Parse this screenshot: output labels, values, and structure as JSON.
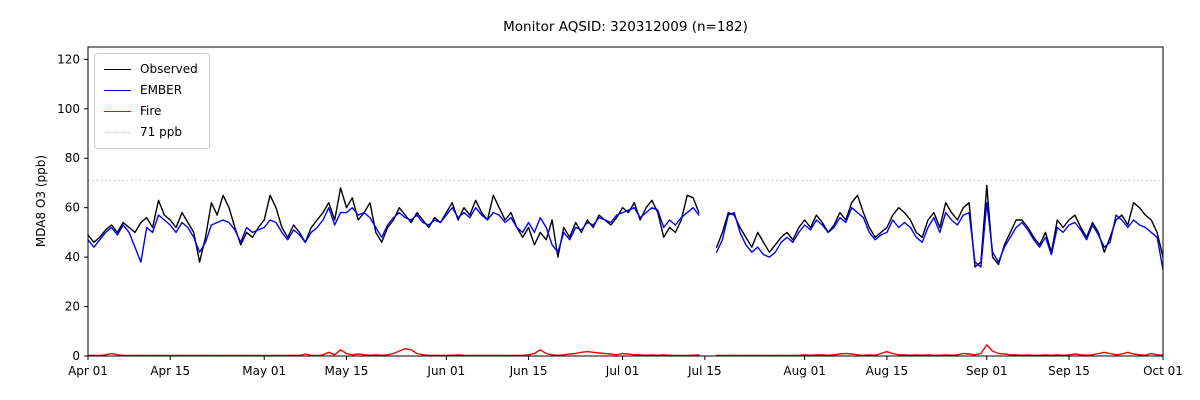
{
  "chart_data": {
    "type": "line",
    "title": "Monitor AQSID: 320312009 (n=182)",
    "n_points": 182,
    "xlabel": "",
    "ylabel": "MDA8 O3 (ppb)",
    "ylim": [
      0,
      125
    ],
    "yticks": [
      0,
      20,
      40,
      60,
      80,
      100,
      120
    ],
    "x_unit": "days since Apr 01",
    "x_range_days": [
      0,
      183
    ],
    "xticks": [
      {
        "label": "Apr 01",
        "day": 0
      },
      {
        "label": "Apr 15",
        "day": 14
      },
      {
        "label": "May 01",
        "day": 30
      },
      {
        "label": "May 15",
        "day": 44
      },
      {
        "label": "Jun 01",
        "day": 61
      },
      {
        "label": "Jun 15",
        "day": 75
      },
      {
        "label": "Jul 01",
        "day": 91
      },
      {
        "label": "Jul 15",
        "day": 105
      },
      {
        "label": "Aug 01",
        "day": 122
      },
      {
        "label": "Aug 15",
        "day": 136
      },
      {
        "label": "Sep 01",
        "day": 153
      },
      {
        "label": "Sep 15",
        "day": 167
      },
      {
        "label": "Oct 01",
        "day": 183
      }
    ],
    "grid": false,
    "legend_position": "upper left",
    "threshold": {
      "value": 71,
      "label": "71 ppb",
      "color": "#c8c8c8",
      "style": "dotted"
    },
    "series": [
      {
        "name": "Observed",
        "color": "#000000",
        "values": [
          49,
          46,
          48,
          51,
          53,
          50,
          54,
          52,
          50,
          54,
          56,
          52,
          63,
          57,
          55,
          52,
          58,
          54,
          50,
          38,
          48,
          62,
          57,
          65,
          60,
          52,
          45,
          50,
          48,
          52,
          55,
          65,
          60,
          52,
          48,
          53,
          50,
          46,
          52,
          55,
          58,
          62,
          55,
          68,
          60,
          64,
          55,
          58,
          62,
          50,
          46,
          52,
          55,
          60,
          57,
          54,
          58,
          55,
          52,
          56,
          54,
          58,
          62,
          55,
          60,
          57,
          63,
          58,
          55,
          65,
          60,
          55,
          58,
          52,
          48,
          52,
          45,
          50,
          47,
          55,
          40,
          52,
          48,
          54,
          50,
          55,
          52,
          57,
          55,
          53,
          56,
          60,
          58,
          62,
          55,
          60,
          63,
          58,
          48,
          52,
          50,
          55,
          65,
          64,
          58,
          null,
          null,
          44,
          50,
          58,
          57,
          52,
          48,
          44,
          50,
          46,
          42,
          45,
          48,
          50,
          47,
          52,
          55,
          52,
          57,
          54,
          50,
          53,
          58,
          55,
          62,
          65,
          58,
          52,
          48,
          50,
          52,
          57,
          60,
          58,
          55,
          50,
          48,
          55,
          58,
          52,
          62,
          58,
          55,
          60,
          62,
          36,
          38,
          69,
          40,
          37,
          45,
          50,
          55,
          55,
          52,
          48,
          45,
          50,
          42,
          55,
          52,
          55,
          57,
          52,
          48,
          54,
          50,
          42,
          48,
          55,
          57,
          53,
          62,
          60,
          57,
          55,
          50,
          40
        ]
      },
      {
        "name": "EMBER",
        "color": "#0000ff",
        "values": [
          47,
          44,
          47,
          50,
          52,
          49,
          53,
          50,
          44,
          38,
          52,
          50,
          57,
          55,
          53,
          50,
          54,
          52,
          48,
          42,
          46,
          53,
          54,
          55,
          54,
          51,
          46,
          52,
          50,
          51,
          52,
          55,
          54,
          50,
          47,
          51,
          49,
          46,
          50,
          52,
          55,
          60,
          53,
          58,
          58,
          60,
          57,
          58,
          56,
          52,
          48,
          53,
          56,
          58,
          56,
          55,
          57,
          54,
          53,
          55,
          54,
          57,
          60,
          56,
          58,
          56,
          60,
          57,
          55,
          58,
          57,
          54,
          56,
          52,
          50,
          54,
          50,
          56,
          52,
          45,
          42,
          50,
          47,
          52,
          51,
          54,
          53,
          56,
          55,
          54,
          57,
          58,
          59,
          60,
          56,
          58,
          60,
          59,
          52,
          55,
          53,
          56,
          58,
          60,
          57,
          null,
          null,
          42,
          47,
          57,
          58,
          50,
          45,
          42,
          44,
          41,
          40,
          42,
          46,
          48,
          46,
          50,
          53,
          51,
          55,
          53,
          50,
          52,
          56,
          54,
          60,
          58,
          56,
          50,
          47,
          49,
          50,
          55,
          52,
          54,
          52,
          48,
          46,
          52,
          56,
          50,
          58,
          55,
          53,
          57,
          58,
          38,
          36,
          62,
          42,
          38,
          44,
          48,
          52,
          54,
          51,
          47,
          44,
          48,
          41,
          52,
          50,
          53,
          54,
          51,
          47,
          53,
          49,
          44,
          46,
          57,
          55,
          52,
          55,
          53,
          52,
          50,
          48,
          35
        ]
      },
      {
        "name": "Fire",
        "color": "#ff0000",
        "values": [
          0.2,
          0.3,
          0.2,
          0.5,
          1,
          0.5,
          0.3,
          0.2,
          0.2,
          0.3,
          0.2,
          0.2,
          0.3,
          0.2,
          0.2,
          0.2,
          0.3,
          0.2,
          0.2,
          0.2,
          0.3,
          0.2,
          0.2,
          0.3,
          0.2,
          0.2,
          0.2,
          0.3,
          0.2,
          0.2,
          0.2,
          0.2,
          0.3,
          0.2,
          0.2,
          0.3,
          0.2,
          0.8,
          0.3,
          0.2,
          0.5,
          1.5,
          0.5,
          2.5,
          1,
          0.5,
          0.8,
          0.5,
          0.3,
          0.5,
          0.3,
          0.5,
          1,
          2,
          3,
          2.5,
          1,
          0.5,
          0.3,
          0.3,
          0.2,
          0.3,
          0.3,
          0.5,
          0.3,
          0.2,
          0.3,
          0.3,
          0.2,
          0.3,
          0.3,
          0.2,
          0.3,
          0.2,
          0.3,
          0.5,
          1,
          2.5,
          1,
          0.5,
          0.3,
          0.5,
          0.8,
          1,
          1.5,
          1.8,
          1.5,
          1.2,
          1,
          0.8,
          0.5,
          1,
          0.8,
          0.5,
          0.5,
          0.3,
          0.5,
          0.3,
          0.5,
          0.3,
          0.3,
          0.2,
          0.3,
          0.3,
          0.5,
          null,
          null,
          0.3,
          0.2,
          0.3,
          0.3,
          0.2,
          0.3,
          0.2,
          0.3,
          0.2,
          0.2,
          0.3,
          0.3,
          0.2,
          0.3,
          0.3,
          0.5,
          0.3,
          0.5,
          0.5,
          0.3,
          0.5,
          0.8,
          1,
          0.8,
          0.5,
          0.3,
          0.5,
          0.3,
          1,
          1.8,
          1,
          0.5,
          0.5,
          0.3,
          0.5,
          0.3,
          0.5,
          0.3,
          0.3,
          0.5,
          0.3,
          0.5,
          1,
          0.8,
          0.5,
          1,
          4.5,
          2,
          1,
          0.8,
          0.5,
          0.5,
          0.3,
          0.5,
          0.3,
          0.3,
          0.5,
          0.3,
          0.5,
          0.3,
          0.5,
          0.8,
          0.5,
          0.3,
          0.5,
          1,
          1.5,
          1,
          0.5,
          0.8,
          1.5,
          0.8,
          0.5,
          0.3,
          1,
          0.5,
          0.3
        ]
      }
    ]
  }
}
